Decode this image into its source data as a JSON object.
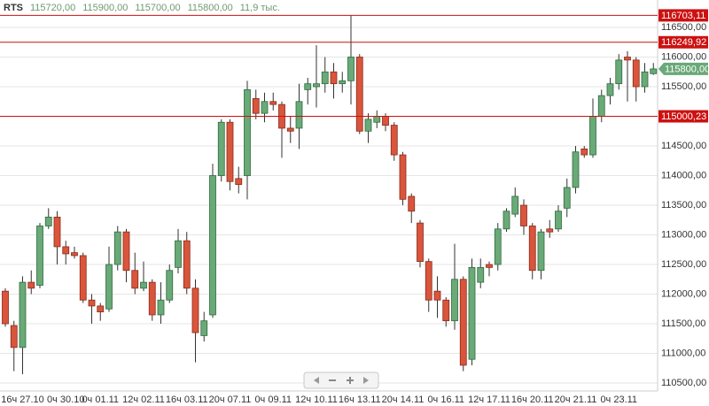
{
  "chart_data": {
    "type": "candlestick",
    "quote": {
      "symbol": "RTS",
      "values": [
        115720,
        115900,
        115700,
        115800
      ],
      "value_labels": [
        "115720,00",
        "115900,00",
        "115700,00",
        "115800,00"
      ],
      "volume": "11,9 тыс."
    },
    "categories": [
      null,
      null,
      "16ч 27.10",
      null,
      null,
      null,
      null,
      "0ч 30.10",
      null,
      null,
      null,
      "0ч 01.11",
      null,
      null,
      null,
      null,
      "12ч 02.11",
      null,
      null,
      null,
      null,
      "16ч 03.11",
      null,
      null,
      null,
      null,
      "20ч 07.11",
      null,
      null,
      null,
      null,
      "0ч 09.11",
      null,
      null,
      null,
      null,
      "12ч 10.11",
      null,
      null,
      null,
      null,
      "16ч 13.11",
      null,
      null,
      null,
      null,
      "20ч 14.11",
      null,
      null,
      null,
      null,
      "0ч 16.11",
      null,
      null,
      null,
      null,
      "12ч 17.11",
      null,
      null,
      null,
      null,
      "16ч 20.11",
      null,
      null,
      null,
      null,
      "20ч 21.11",
      null,
      null,
      null,
      null,
      "0ч 23.11",
      null,
      null,
      null,
      null
    ],
    "open": [
      112050,
      111470,
      111100,
      112200,
      112150,
      113150,
      113300,
      112800,
      112700,
      112650,
      111900,
      111800,
      111750,
      112500,
      113050,
      112400,
      112100,
      112200,
      111650,
      111900,
      112450,
      112900,
      112100,
      111300,
      111650,
      114000,
      114900,
      113950,
      114000,
      115300,
      115050,
      115250,
      115200,
      114800,
      114800,
      115450,
      115500,
      115550,
      115750,
      115550,
      115600,
      116000,
      114750,
      114900,
      115000,
      114850,
      114350,
      113650,
      113200,
      112550,
      112050,
      111900,
      111550,
      112250,
      110900,
      112200,
      112500,
      112500,
      113100,
      113350,
      113500,
      113150,
      112400,
      113100,
      113100,
      113450,
      113800,
      114450,
      114350,
      115000,
      115350,
      115550,
      116000,
      115950,
      115500,
      115720
    ],
    "high": [
      112100,
      111550,
      112300,
      112400,
      113200,
      113450,
      113400,
      112900,
      112800,
      112700,
      112000,
      111850,
      112800,
      113150,
      113100,
      112700,
      112550,
      112250,
      112200,
      112500,
      113100,
      113050,
      112250,
      111700,
      114200,
      114950,
      114950,
      114150,
      115600,
      115450,
      115400,
      115400,
      115250,
      115000,
      115550,
      115650,
      116200,
      116000,
      115900,
      115750,
      116700,
      116050,
      115050,
      115100,
      115050,
      114900,
      114400,
      113700,
      113250,
      112600,
      112300,
      111950,
      112850,
      112300,
      112600,
      112600,
      112550,
      113200,
      113450,
      113800,
      113600,
      113200,
      113100,
      113250,
      113500,
      113950,
      114500,
      114500,
      115300,
      115450,
      115650,
      116050,
      116100,
      116000,
      115900,
      115900
    ],
    "low": [
      111450,
      110700,
      110650,
      112000,
      112100,
      113100,
      112500,
      112500,
      112600,
      111850,
      111500,
      111550,
      111700,
      112400,
      112200,
      112000,
      112050,
      111550,
      111500,
      111850,
      112350,
      112000,
      110850,
      111200,
      111600,
      113900,
      113750,
      113700,
      113600,
      114950,
      114900,
      115100,
      114300,
      114550,
      114450,
      115200,
      115150,
      115400,
      115300,
      115400,
      115200,
      114700,
      114550,
      114800,
      114750,
      114250,
      113500,
      113200,
      112450,
      111700,
      111600,
      111450,
      111400,
      110700,
      110800,
      112100,
      112300,
      112400,
      113050,
      113300,
      113000,
      112250,
      112250,
      112950,
      113050,
      113300,
      113700,
      114300,
      114300,
      114900,
      115200,
      115450,
      115250,
      115250,
      115400,
      115700
    ],
    "close": [
      111500,
      111100,
      112200,
      112100,
      113150,
      113300,
      112800,
      112680,
      112650,
      111900,
      111800,
      111700,
      112500,
      113050,
      112400,
      112100,
      112200,
      111650,
      111900,
      112400,
      112900,
      112100,
      111350,
      111550,
      114000,
      114900,
      113900,
      113850,
      115450,
      115050,
      115250,
      115200,
      114800,
      114750,
      115250,
      115550,
      115550,
      115750,
      115550,
      115600,
      116000,
      114750,
      114950,
      115000,
      114850,
      114350,
      113600,
      113400,
      112550,
      111900,
      111900,
      111550,
      112250,
      110800,
      112450,
      112450,
      112450,
      113100,
      113400,
      113650,
      113150,
      112400,
      113050,
      113050,
      113400,
      113800,
      114400,
      114350,
      115000,
      115350,
      115550,
      115950,
      115950,
      115500,
      115750,
      115800
    ],
    "up_color": "#6aa978",
    "down_color": "#d9553c",
    "ylim": [
      110366,
      116963
    ],
    "yticks": [
      {
        "value": 110500,
        "label": "110500,00"
      },
      {
        "value": 111000,
        "label": "111000,00"
      },
      {
        "value": 111500,
        "label": "111500,00"
      },
      {
        "value": 112000,
        "label": "112000,00"
      },
      {
        "value": 112500,
        "label": "112500,00"
      },
      {
        "value": 113000,
        "label": "113000,00"
      },
      {
        "value": 113500,
        "label": "113500,00"
      },
      {
        "value": 114000,
        "label": "114000,00"
      },
      {
        "value": 114500,
        "label": "114500,00"
      },
      {
        "value": 115000,
        "label": "115000,00"
      },
      {
        "value": 115500,
        "label": "115500,00"
      },
      {
        "value": 116000,
        "label": "116000,00"
      },
      {
        "value": 116500,
        "label": "116500,00"
      }
    ],
    "grid": true,
    "levels": [
      {
        "value": 116703.11,
        "label": "116703,11",
        "color": "#cc1111"
      },
      {
        "value": 116249.92,
        "label": "116249,92",
        "color": "#cc1111"
      },
      {
        "value": 115000.23,
        "label": "115000,23",
        "color": "#cc1111"
      }
    ],
    "current": {
      "value": 115800,
      "label": "115800,00",
      "color": "#6aa978"
    }
  }
}
